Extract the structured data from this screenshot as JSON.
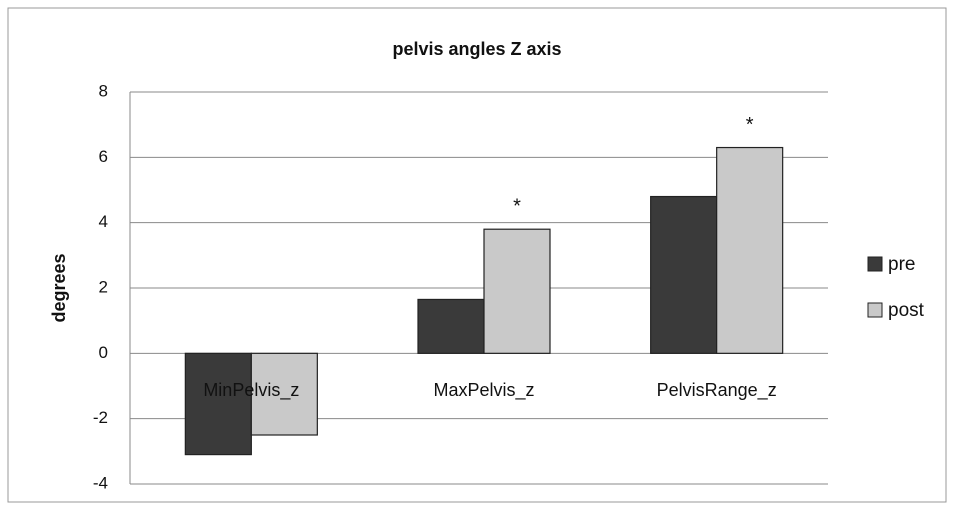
{
  "chart_data": {
    "type": "bar",
    "title": "pelvis angles Z axis",
    "y_label": "degrees",
    "categories": [
      "MinPelvis_z",
      "MaxPelvis_z",
      "PelvisRange_z"
    ],
    "series": [
      {
        "name": "pre",
        "color": "#3a3a3a",
        "values": [
          -3.1,
          1.65,
          4.8
        ],
        "annotations": [
          null,
          null,
          null
        ]
      },
      {
        "name": "post",
        "color": "#c9c9c9",
        "values": [
          -2.5,
          3.8,
          6.3
        ],
        "annotations": [
          null,
          "*",
          "*"
        ]
      }
    ],
    "ylim": [
      -4,
      8
    ],
    "yticks": [
      -4,
      -2,
      0,
      2,
      4,
      6,
      8
    ],
    "grid": true,
    "legend": "right"
  }
}
